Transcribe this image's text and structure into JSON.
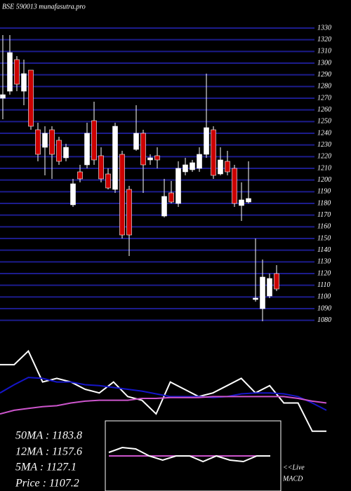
{
  "chart_data": {
    "type": "candlestick",
    "title": "BSE 590013 munafasutra.pro",
    "open": [
      1270,
      1276,
      1303,
      1276,
      1294,
      1243,
      1228,
      1243,
      1234,
      1219,
      1178.8,
      1207,
      1213,
      1250.8,
      1220.8,
      1205.2,
      1192,
      1222,
      1192,
      1226.2,
      1240,
      1217.2,
      1220.8,
      1169.2,
      1189,
      1180,
      1207,
      1208.8,
      1210,
      1222,
      1243,
      1205.2,
      1216,
      1210,
      1178.2,
      1181.2,
      1097.8,
      1090,
      1100.8,
      1120
    ],
    "high": [
      1324,
      1324,
      1306,
      1303,
      1294,
      1249,
      1246,
      1246,
      1237,
      1231,
      1201,
      1213,
      1249,
      1267,
      1228,
      1210,
      1249,
      1225,
      1195,
      1264,
      1243,
      1222,
      1228,
      1201,
      1199.2,
      1216,
      1219,
      1217.2,
      1228,
      1291,
      1246,
      1228,
      1225,
      1213,
      1198,
      1216,
      1150,
      1132,
      1120,
      1127.2
    ],
    "low": [
      1252,
      1273,
      1276,
      1264,
      1243,
      1216,
      1204,
      1201,
      1213,
      1216,
      1177,
      1198,
      1210,
      1213,
      1198,
      1192,
      1189,
      1150,
      1135,
      1225,
      1189,
      1213,
      1210,
      1168,
      1180,
      1177,
      1204,
      1207,
      1207,
      1219,
      1201,
      1204,
      1204,
      1177,
      1165,
      1180,
      1096,
      1079.2,
      1099,
      1105
    ],
    "close": [
      1273,
      1309,
      1282,
      1291,
      1246,
      1222,
      1240,
      1222,
      1216,
      1228,
      1196.8,
      1201,
      1240,
      1217.2,
      1201,
      1193.2,
      1246,
      1153,
      1153,
      1240,
      1213,
      1219,
      1217.2,
      1186,
      1181.2,
      1210,
      1213,
      1214.8,
      1222,
      1244.8,
      1204,
      1217.2,
      1207,
      1180,
      1183,
      1184.2,
      1099,
      1117,
      1115.8,
      1106.8
    ],
    "up_color": "#ffffff",
    "down_color": "#cc0000",
    "grid": true,
    "grid_color": "#1c1c8c",
    "ylim": [
      1078,
      1330
    ],
    "yticks": [
      1080,
      1090,
      1100,
      1110,
      1120,
      1130,
      1140,
      1150,
      1160,
      1170,
      1180,
      1190,
      1200,
      1210,
      1220,
      1230,
      1240,
      1250,
      1260,
      1270,
      1280,
      1290,
      1300,
      1310,
      1320,
      1330
    ],
    "indicator_panel": {
      "type": "line",
      "ylim": [
        0,
        100
      ],
      "series": [
        {
          "color": "#ffffff",
          "values": [
            77,
            77,
            92,
            58,
            62,
            58,
            50,
            46,
            58,
            42,
            38,
            23,
            58,
            50,
            42,
            46,
            54,
            62,
            46,
            54,
            35,
            35,
            4,
            4
          ]
        },
        {
          "color": "#1515c8",
          "values": [
            46,
            55,
            63,
            62,
            58,
            58,
            55,
            54,
            52,
            50,
            48,
            45,
            42,
            42,
            42,
            41,
            42,
            45,
            46,
            46,
            45,
            42,
            35,
            27
          ]
        },
        {
          "color": "#cc55cc",
          "values": [
            23,
            27,
            29,
            31,
            32,
            35,
            37,
            38,
            38,
            38,
            40,
            40,
            41,
            41,
            41,
            42,
            42,
            42,
            42,
            42,
            42,
            40,
            37,
            35
          ]
        }
      ]
    },
    "macd_panel": {
      "type": "line",
      "ylim": [
        0,
        100
      ],
      "series": [
        {
          "color": "#cc55cc",
          "values": [
            50,
            50,
            50,
            50,
            50,
            50,
            50,
            50,
            50,
            50,
            50,
            50,
            50
          ]
        },
        {
          "color": "#ffffff",
          "values": [
            55,
            62,
            60,
            50,
            44,
            50,
            50,
            42,
            50,
            44,
            42,
            50,
            50
          ]
        }
      ]
    },
    "legend_text": [
      "50MA : 1183.8",
      "12MA : 1157.6",
      "5MA : 1127.1",
      "Price  : 1107.2"
    ],
    "live_label": "<<Live",
    "macd_label": "MACD"
  }
}
